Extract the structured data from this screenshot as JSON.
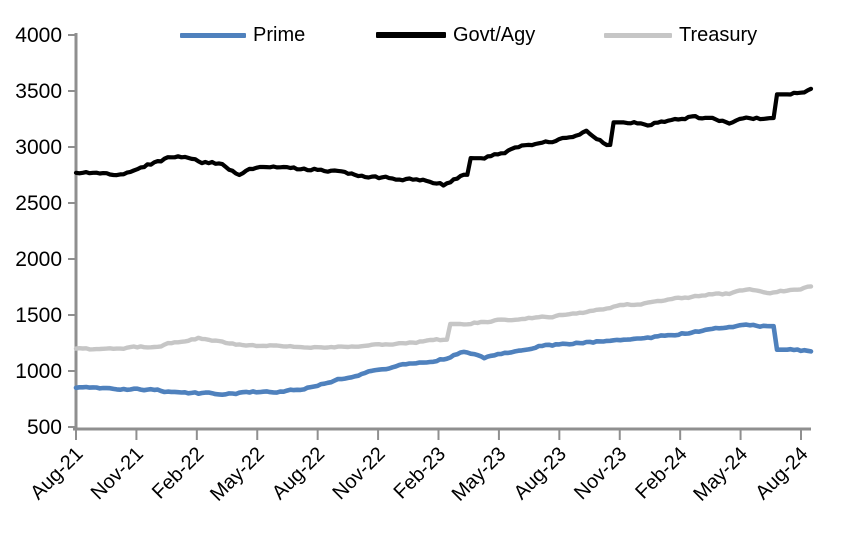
{
  "chart_data": {
    "type": "line",
    "title": "",
    "xlabel": "",
    "ylabel": "",
    "ylim": [
      500,
      4000
    ],
    "y_ticks": [
      500,
      1000,
      1500,
      2000,
      2500,
      3000,
      3500,
      4000
    ],
    "grid": false,
    "legend_position": "top",
    "x_tick_labels": [
      "Aug-21",
      "Nov-21",
      "Feb-22",
      "May-22",
      "Aug-22",
      "Nov-22",
      "Feb-23",
      "May-23",
      "Aug-23",
      "Nov-23",
      "Feb-24",
      "May-24",
      "Aug-24"
    ],
    "months": [
      "Aug-21",
      "Sep-21",
      "Oct-21",
      "Nov-21",
      "Dec-21",
      "Jan-22",
      "Feb-22",
      "Mar-22",
      "Apr-22",
      "May-22",
      "Jun-22",
      "Jul-22",
      "Aug-22",
      "Sep-22",
      "Oct-22",
      "Nov-22",
      "Dec-22",
      "Jan-23",
      "Feb-23",
      "Mar-23",
      "Apr-23",
      "May-23",
      "Jun-23",
      "Jul-23",
      "Aug-23",
      "Sep-23",
      "Oct-23",
      "Nov-23",
      "Dec-23",
      "Jan-24",
      "Feb-24",
      "Mar-24",
      "Apr-24",
      "May-24",
      "Jun-24",
      "Jul-24",
      "Aug-24"
    ],
    "series": [
      {
        "name": "Prime",
        "color": "#4F81BD",
        "values": [
          850,
          845,
          840,
          835,
          825,
          810,
          800,
          795,
          805,
          815,
          820,
          835,
          880,
          930,
          975,
          1015,
          1055,
          1075,
          1110,
          1170,
          1120,
          1160,
          1200,
          1230,
          1240,
          1255,
          1270,
          1285,
          1295,
          1320,
          1340,
          1365,
          1395,
          1405,
          1400,
          1190,
          1175
        ]
      },
      {
        "name": "Govt/Agy",
        "color": "#000000",
        "values": [
          2770,
          2765,
          2755,
          2805,
          2870,
          2925,
          2865,
          2855,
          2760,
          2820,
          2815,
          2805,
          2795,
          2770,
          2745,
          2725,
          2720,
          2700,
          2660,
          2750,
          2900,
          2950,
          3010,
          3045,
          3070,
          3130,
          3020,
          3220,
          3200,
          3240,
          3270,
          3250,
          3220,
          3250,
          3260,
          3470,
          3520
        ]
      },
      {
        "name": "Treasury",
        "color": "#C6C6C6",
        "values": [
          1200,
          1195,
          1200,
          1210,
          1225,
          1260,
          1295,
          1260,
          1235,
          1225,
          1220,
          1210,
          1215,
          1220,
          1225,
          1235,
          1250,
          1265,
          1280,
          1420,
          1440,
          1455,
          1470,
          1480,
          1500,
          1530,
          1560,
          1590,
          1610,
          1635,
          1660,
          1680,
          1690,
          1730,
          1700,
          1725,
          1755
        ]
      }
    ]
  },
  "colors": {
    "axis": "#8f8f8f",
    "text": "#000000",
    "background": "#ffffff"
  }
}
